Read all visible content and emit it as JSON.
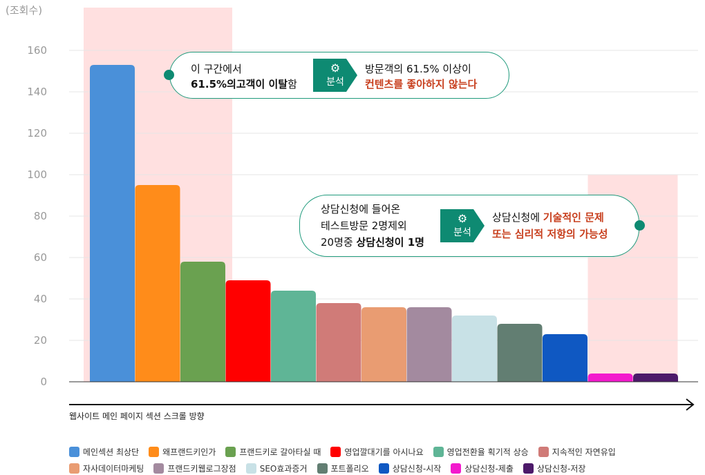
{
  "chart_data": {
    "type": "bar",
    "ylabel": "(조회수)",
    "xlabel": "웹사이트 메인 페이지 섹션 스크롤 방향",
    "ylim": [
      0,
      160
    ],
    "yticks": [
      0,
      20,
      40,
      60,
      80,
      100,
      120,
      140,
      160
    ],
    "grid": true,
    "legend_position": "bottom",
    "categories": [
      "메인섹션 최상단",
      "왜프랜드키인가",
      "프랜드키로 갈아타실 때",
      "영업깔대기를 아시나요",
      "영업전환율 획기적 상승",
      "지속적인 자연유입",
      "자사데이터마케팅",
      "프랜드키웹로그장점",
      "SEO효과증거",
      "포트폴리오",
      "상담신청-시작",
      "상담신청-제출",
      "상담신청-저장"
    ],
    "values": [
      153,
      95,
      58,
      49,
      44,
      38,
      36,
      36,
      32,
      28,
      23,
      4,
      4
    ],
    "colors": [
      "#4a90d9",
      "#ff8c1a",
      "#6aa150",
      "#ff0000",
      "#5fb596",
      "#d07b78",
      "#e99c72",
      "#a38a9f",
      "#c8e1e6",
      "#627e72",
      "#0f58c2",
      "#f31acd",
      "#4d1a6a"
    ],
    "highlight_color": "#ffe0e0"
  },
  "callout1": {
    "line1": "이 구간에서",
    "line2_bold": "61.5%의고객이 이탈",
    "line2_rest": "함",
    "badge": "분석",
    "result1": "방문객의 61.5% 이상이",
    "result2": "컨텐츠를 좋아하지 않는다"
  },
  "callout2": {
    "line1": "상담신청에 들어온",
    "line2": "테스트방문 2명제외",
    "line3_pre": "20명중 ",
    "line3_bold": "상담신청이 1명",
    "badge": "분석",
    "result_pre": "상담신청에 ",
    "result_red1": "기술적인 문제",
    "result_red2": "또는 심리적 저항의 가능성"
  }
}
